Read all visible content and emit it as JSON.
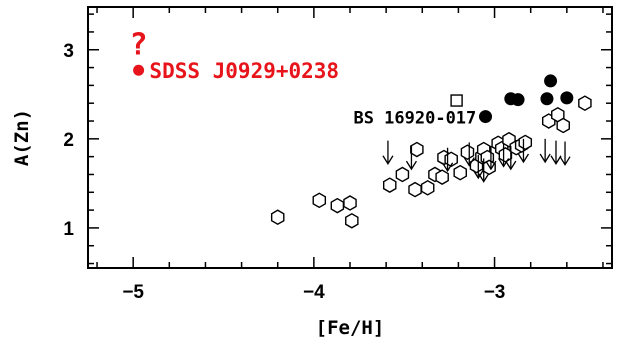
{
  "chart_data": {
    "type": "scatter",
    "xlabel": "[Fe/H]",
    "ylabel": "A(Zn)",
    "xlim": [
      -5.25,
      -2.35
    ],
    "ylim": [
      0.55,
      3.48
    ],
    "x_ticks": [
      -5,
      -4,
      -3
    ],
    "x_tick_labels": [
      "−5",
      "−4",
      "−3"
    ],
    "y_ticks": [
      1,
      2,
      3
    ],
    "y_tick_labels": [
      "1",
      "2",
      "3"
    ],
    "x_minor_step": 0.2,
    "y_minor_step": 0.2,
    "colors": {
      "highlight": "#e8141b",
      "marker": "#000000",
      "axis": "#000000"
    },
    "series": [
      {
        "marker": "open-hexagon",
        "points": [
          [
            -4.2,
            1.12
          ],
          [
            -3.97,
            1.31
          ],
          [
            -3.87,
            1.25
          ],
          [
            -3.8,
            1.28
          ],
          [
            -3.79,
            1.08
          ],
          [
            -3.58,
            1.48
          ],
          [
            -3.51,
            1.6
          ],
          [
            -3.44,
            1.43
          ],
          [
            -3.43,
            1.88
          ],
          [
            -3.37,
            1.45
          ],
          [
            -3.33,
            1.6
          ],
          [
            -3.29,
            1.57
          ],
          [
            -3.28,
            1.79
          ],
          [
            -3.24,
            1.77
          ],
          [
            -3.19,
            1.62
          ],
          [
            -3.15,
            1.85
          ],
          [
            -3.1,
            1.7
          ],
          [
            -3.07,
            1.8
          ],
          [
            -3.06,
            1.88
          ],
          [
            -3.04,
            1.79
          ],
          [
            -3.03,
            1.68
          ],
          [
            -2.98,
            1.95
          ],
          [
            -2.96,
            1.89
          ],
          [
            -2.94,
            1.82
          ],
          [
            -2.92,
            1.99
          ],
          [
            -2.88,
            1.9
          ],
          [
            -2.85,
            1.93
          ],
          [
            -2.83,
            1.96
          ],
          [
            -2.7,
            2.2
          ],
          [
            -2.65,
            2.27
          ],
          [
            -2.62,
            2.15
          ],
          [
            -2.5,
            2.4
          ]
        ]
      },
      {
        "marker": "filled-circle",
        "points": [
          [
            -3.05,
            2.25
          ],
          [
            -2.91,
            2.45
          ],
          [
            -2.87,
            2.44
          ],
          [
            -2.71,
            2.45
          ],
          [
            -2.69,
            2.65
          ],
          [
            -2.6,
            2.46
          ]
        ]
      },
      {
        "marker": "open-square",
        "points": [
          [
            -3.21,
            2.43
          ]
        ]
      },
      {
        "marker": "upper-limit-arrow",
        "points": [
          [
            -3.59,
            1.98
          ],
          [
            -3.46,
            1.92
          ],
          [
            -3.26,
            1.9
          ],
          [
            -3.14,
            1.96
          ],
          [
            -3.09,
            1.82
          ],
          [
            -3.06,
            1.78
          ],
          [
            -3.02,
            1.92
          ],
          [
            -2.95,
            1.95
          ],
          [
            -2.91,
            1.92
          ],
          [
            -2.84,
            2.0
          ],
          [
            -2.72,
            2.0
          ],
          [
            -2.66,
            1.98
          ],
          [
            -2.61,
            1.97
          ]
        ],
        "arrow_length": 0.26
      },
      {
        "marker": "filled-circle-red",
        "points": [
          [
            -4.97,
            2.77
          ]
        ]
      }
    ],
    "annotations": [
      {
        "text": "SDSS J0929+0238",
        "x": -4.91,
        "y": 2.77,
        "color": "#e8141b"
      },
      {
        "text": "BS 16920-017",
        "x": -3.09,
        "y": 2.25,
        "color": "#000000"
      },
      {
        "text": "?",
        "x": -4.97,
        "y": 3.08,
        "color": "#e8141b"
      }
    ]
  }
}
